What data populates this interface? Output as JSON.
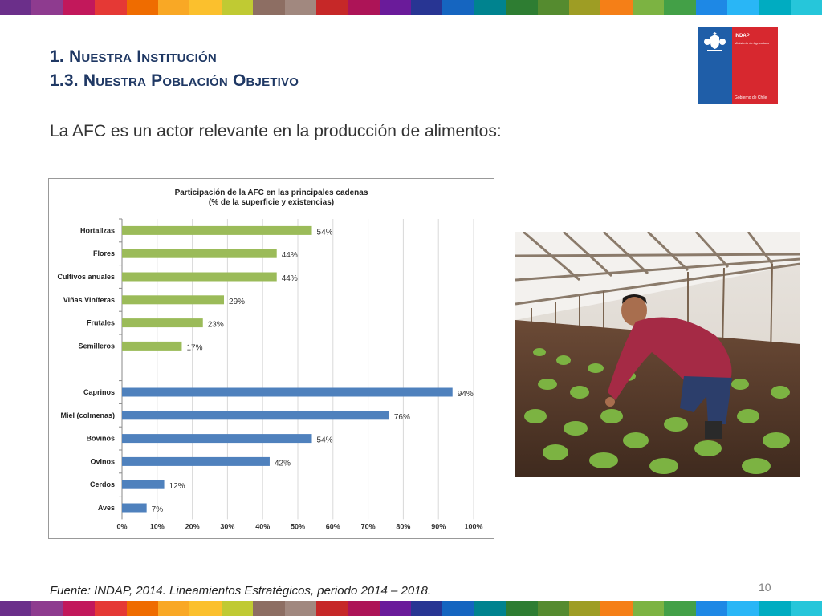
{
  "slide": {
    "title_line1": "1. Nuestra Institución",
    "title_line2": "1.3. Nuestra Población Objetivo",
    "subtitle": "La AFC es un actor relevante en la producción de alimentos:",
    "source": "Fuente: INDAP, 2014. Lineamientos Estratégicos, periodo 2014 – 2018.",
    "page_number": "10"
  },
  "logo": {
    "name": "INDAP",
    "ministry": "Ministerio de Agricultura",
    "government": "Gobierno de Chile"
  },
  "stripe_colors": [
    "#6b2f8a",
    "#8e3b8f",
    "#c2185b",
    "#e53935",
    "#ef6c00",
    "#f9a825",
    "#fbc02d",
    "#c0ca33",
    "#8d6e63",
    "#a1887f",
    "#c62828",
    "#ad1457",
    "#6a1b9a",
    "#283593",
    "#1565c0",
    "#00838f",
    "#2e7d32",
    "#558b2f",
    "#9e9d24",
    "#f57f17",
    "#7cb342",
    "#43a047",
    "#1e88e5",
    "#29b6f6",
    "#00acc1",
    "#26c6da"
  ],
  "colors": {
    "green_series": "#9bbb59",
    "blue_series": "#4f81bd"
  },
  "chart_data": {
    "type": "bar",
    "orientation": "horizontal",
    "title": "Participación de la AFC  en las principales cadenas",
    "subtitle": "(% de la superficie y existencias)",
    "categories": [
      "Hortalizas",
      "Flores",
      "Cultivos anuales",
      "Viñas Viníferas",
      "Frutales",
      "Semilleros",
      "",
      "Caprinos",
      "Miel (colmenas)",
      "Bovinos",
      "Ovinos",
      "Cerdos",
      "Aves"
    ],
    "values": [
      54,
      44,
      44,
      29,
      23,
      17,
      null,
      94,
      76,
      54,
      42,
      12,
      7
    ],
    "value_labels": [
      "54%",
      "44%",
      "44%",
      "29%",
      "23%",
      "17%",
      "",
      "94%",
      "76%",
      "54%",
      "42%",
      "12%",
      "7%"
    ],
    "bar_colors": [
      "green",
      "green",
      "green",
      "green",
      "green",
      "green",
      "none",
      "blue",
      "blue",
      "blue",
      "blue",
      "blue",
      "blue"
    ],
    "xlim": [
      0,
      100
    ],
    "xticks": [
      "0%",
      "10%",
      "20%",
      "30%",
      "40%",
      "50%",
      "60%",
      "70%",
      "80%",
      "90%",
      "100%"
    ],
    "grid": true,
    "legend": "none"
  }
}
